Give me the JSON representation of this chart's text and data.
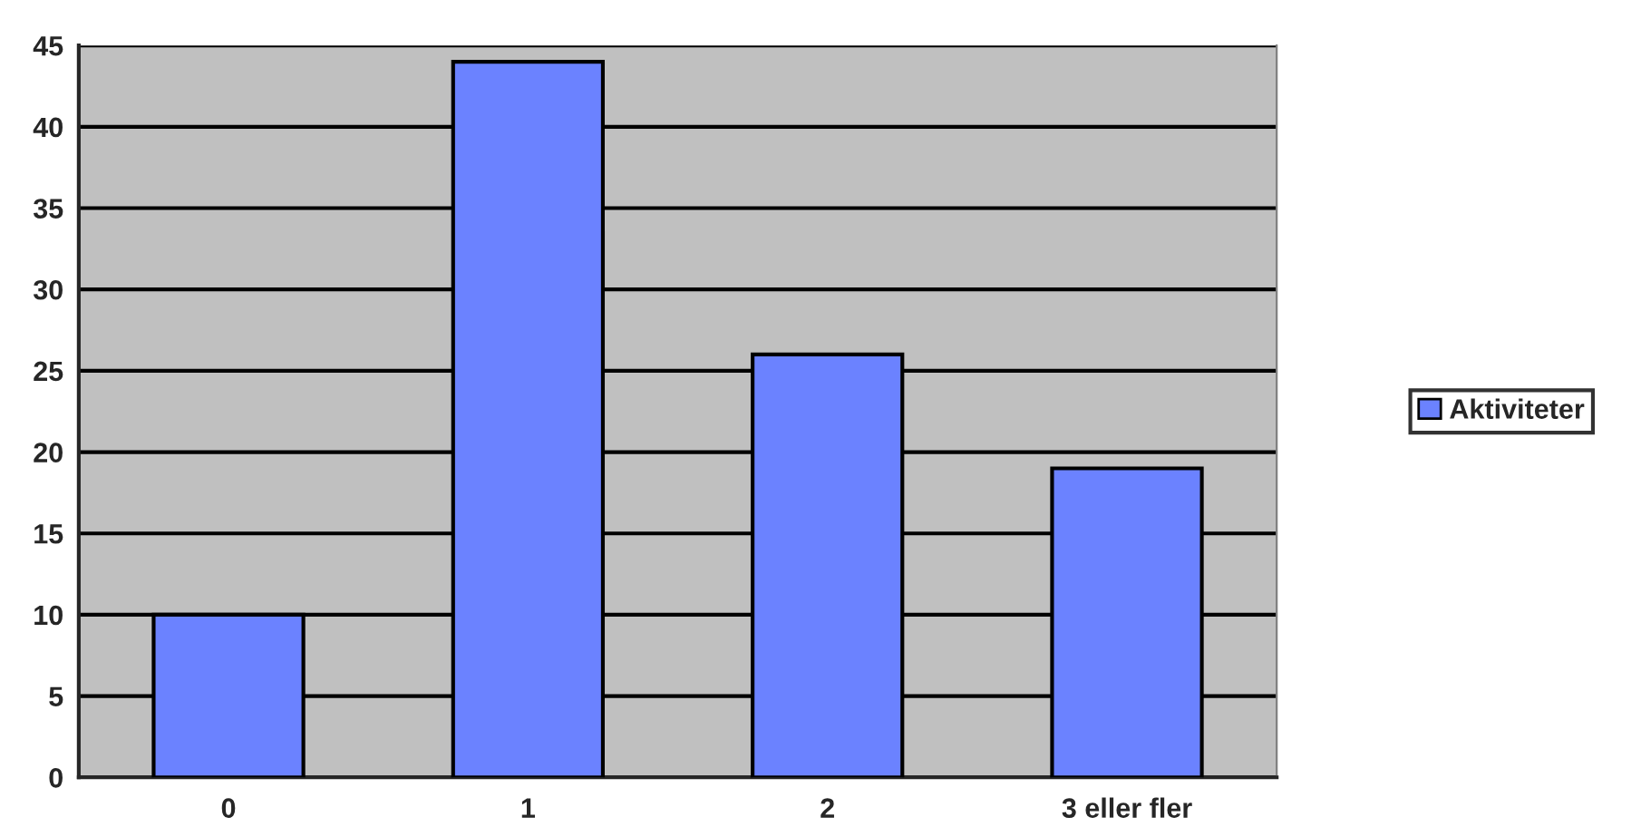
{
  "chart_data": {
    "type": "bar",
    "categories": [
      "0",
      "1",
      "2",
      "3 eller fler"
    ],
    "series": [
      {
        "name": "Aktiviteter",
        "color": "#6b82ff",
        "values": [
          10,
          44,
          26,
          19
        ]
      }
    ],
    "ylim": [
      0,
      45
    ],
    "yticks": [
      0,
      5,
      10,
      15,
      20,
      25,
      30,
      35,
      40,
      45
    ],
    "grid": "y",
    "legend": "right"
  }
}
